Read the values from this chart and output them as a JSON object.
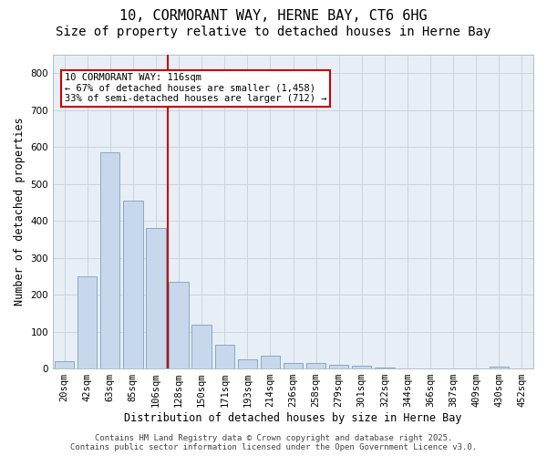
{
  "title_line1": "10, CORMORANT WAY, HERNE BAY, CT6 6HG",
  "title_line2": "Size of property relative to detached houses in Herne Bay",
  "xlabel": "Distribution of detached houses by size in Herne Bay",
  "ylabel": "Number of detached properties",
  "categories": [
    "20sqm",
    "42sqm",
    "63sqm",
    "85sqm",
    "106sqm",
    "128sqm",
    "150sqm",
    "171sqm",
    "193sqm",
    "214sqm",
    "236sqm",
    "258sqm",
    "279sqm",
    "301sqm",
    "322sqm",
    "344sqm",
    "366sqm",
    "387sqm",
    "409sqm",
    "430sqm",
    "452sqm"
  ],
  "values": [
    20,
    250,
    585,
    455,
    380,
    235,
    120,
    65,
    25,
    35,
    15,
    15,
    10,
    8,
    3,
    0,
    0,
    0,
    0,
    5,
    0
  ],
  "bar_color": "#c8d8ec",
  "bar_edge_color": "#7a9fc0",
  "vline_pos": 4.5,
  "vline_color": "#cc0000",
  "annotation_text": "10 CORMORANT WAY: 116sqm\n← 67% of detached houses are smaller (1,458)\n33% of semi-detached houses are larger (712) →",
  "annotation_box_color": "#cc0000",
  "annotation_bg_color": "#ffffff",
  "ylim": [
    0,
    850
  ],
  "yticks": [
    0,
    100,
    200,
    300,
    400,
    500,
    600,
    700,
    800
  ],
  "footer_line1": "Contains HM Land Registry data © Crown copyright and database right 2025.",
  "footer_line2": "Contains public sector information licensed under the Open Government Licence v3.0.",
  "bg_color": "#ffffff",
  "plot_bg_color": "#e8eef5",
  "grid_color": "#c8d4e0",
  "title_fontsize": 11,
  "subtitle_fontsize": 10,
  "axis_label_fontsize": 8.5,
  "tick_fontsize": 7.5,
  "annotation_fontsize": 7.5,
  "footer_fontsize": 6.5
}
